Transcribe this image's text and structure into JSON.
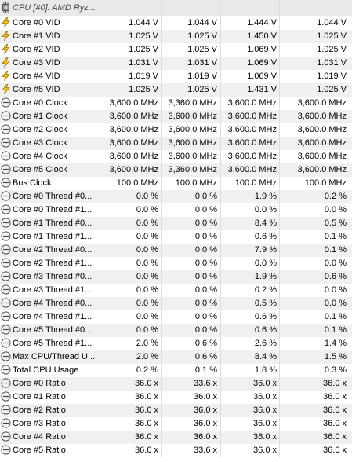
{
  "header": {
    "title": "CPU [#0]: AMD Ryz...",
    "icon": "cpu-chip-icon"
  },
  "icons": {
    "voltage": "lightning-icon",
    "clock": "gauge-icon"
  },
  "rows": [
    {
      "icon": "voltage",
      "label": "Core #0 VID",
      "v": [
        "1.044 V",
        "1.044 V",
        "1.444 V",
        "1.044 V"
      ]
    },
    {
      "icon": "voltage",
      "label": "Core #1 VID",
      "v": [
        "1.025 V",
        "1.025 V",
        "1.450 V",
        "1.025 V"
      ]
    },
    {
      "icon": "voltage",
      "label": "Core #2 VID",
      "v": [
        "1.025 V",
        "1.025 V",
        "1.069 V",
        "1.025 V"
      ]
    },
    {
      "icon": "voltage",
      "label": "Core #3 VID",
      "v": [
        "1.031 V",
        "1.031 V",
        "1.069 V",
        "1.031 V"
      ]
    },
    {
      "icon": "voltage",
      "label": "Core #4 VID",
      "v": [
        "1.019 V",
        "1.019 V",
        "1.069 V",
        "1.019 V"
      ]
    },
    {
      "icon": "voltage",
      "label": "Core #5 VID",
      "v": [
        "1.025 V",
        "1.025 V",
        "1.431 V",
        "1.025 V"
      ]
    },
    {
      "icon": "clock",
      "label": "Core #0 Clock",
      "v": [
        "3,600.0 MHz",
        "3,360.0 MHz",
        "3,600.0 MHz",
        "3,600.0 MHz"
      ]
    },
    {
      "icon": "clock",
      "label": "Core #1 Clock",
      "v": [
        "3,600.0 MHz",
        "3,600.0 MHz",
        "3,600.0 MHz",
        "3,600.0 MHz"
      ]
    },
    {
      "icon": "clock",
      "label": "Core #2 Clock",
      "v": [
        "3,600.0 MHz",
        "3,600.0 MHz",
        "3,600.0 MHz",
        "3,600.0 MHz"
      ]
    },
    {
      "icon": "clock",
      "label": "Core #3 Clock",
      "v": [
        "3,600.0 MHz",
        "3,600.0 MHz",
        "3,600.0 MHz",
        "3,600.0 MHz"
      ]
    },
    {
      "icon": "clock",
      "label": "Core #4 Clock",
      "v": [
        "3,600.0 MHz",
        "3,600.0 MHz",
        "3,600.0 MHz",
        "3,600.0 MHz"
      ]
    },
    {
      "icon": "clock",
      "label": "Core #5 Clock",
      "v": [
        "3,600.0 MHz",
        "3,360.0 MHz",
        "3,600.0 MHz",
        "3,600.0 MHz"
      ]
    },
    {
      "icon": "clock",
      "label": "Bus Clock",
      "v": [
        "100.0 MHz",
        "100.0 MHz",
        "100.0 MHz",
        "100.0 MHz"
      ]
    },
    {
      "icon": "clock",
      "label": "Core #0 Thread #0...",
      "v": [
        "0.0 %",
        "0.0 %",
        "1.9 %",
        "0.2 %"
      ]
    },
    {
      "icon": "clock",
      "label": "Core #0 Thread #1...",
      "v": [
        "0.0 %",
        "0.0 %",
        "0.0 %",
        "0.0 %"
      ]
    },
    {
      "icon": "clock",
      "label": "Core #1 Thread #0...",
      "v": [
        "0.0 %",
        "0.0 %",
        "8.4 %",
        "0.5 %"
      ]
    },
    {
      "icon": "clock",
      "label": "Core #1 Thread #1...",
      "v": [
        "0.0 %",
        "0.0 %",
        "0.6 %",
        "0.1 %"
      ]
    },
    {
      "icon": "clock",
      "label": "Core #2 Thread #0...",
      "v": [
        "0.0 %",
        "0.0 %",
        "7.9 %",
        "0.1 %"
      ]
    },
    {
      "icon": "clock",
      "label": "Core #2 Thread #1...",
      "v": [
        "0.0 %",
        "0.0 %",
        "0.0 %",
        "0.0 %"
      ]
    },
    {
      "icon": "clock",
      "label": "Core #3 Thread #0...",
      "v": [
        "0.0 %",
        "0.0 %",
        "1.9 %",
        "0.6 %"
      ]
    },
    {
      "icon": "clock",
      "label": "Core #3 Thread #1...",
      "v": [
        "0.0 %",
        "0.0 %",
        "0.2 %",
        "0.0 %"
      ]
    },
    {
      "icon": "clock",
      "label": "Core #4 Thread #0...",
      "v": [
        "0.0 %",
        "0.0 %",
        "0.5 %",
        "0.0 %"
      ]
    },
    {
      "icon": "clock",
      "label": "Core #4 Thread #1...",
      "v": [
        "0.0 %",
        "0.0 %",
        "0.6 %",
        "0.1 %"
      ]
    },
    {
      "icon": "clock",
      "label": "Core #5 Thread #0...",
      "v": [
        "0.0 %",
        "0.0 %",
        "0.6 %",
        "0.1 %"
      ]
    },
    {
      "icon": "clock",
      "label": "Core #5 Thread #1...",
      "v": [
        "2.0 %",
        "0.6 %",
        "2.6 %",
        "1.4 %"
      ]
    },
    {
      "icon": "clock",
      "label": "Max CPU/Thread U...",
      "v": [
        "2.0 %",
        "0.6 %",
        "8.4 %",
        "1.5 %"
      ]
    },
    {
      "icon": "clock",
      "label": "Total CPU Usage",
      "v": [
        "0.2 %",
        "0.1 %",
        "1.8 %",
        "0.3 %"
      ]
    },
    {
      "icon": "clock",
      "label": "Core #0 Ratio",
      "v": [
        "36.0 x",
        "33.6 x",
        "36.0 x",
        "36.0 x"
      ]
    },
    {
      "icon": "clock",
      "label": "Core #1 Ratio",
      "v": [
        "36.0 x",
        "36.0 x",
        "36.0 x",
        "36.0 x"
      ]
    },
    {
      "icon": "clock",
      "label": "Core #2 Ratio",
      "v": [
        "36.0 x",
        "36.0 x",
        "36.0 x",
        "36.0 x"
      ]
    },
    {
      "icon": "clock",
      "label": "Core #3 Ratio",
      "v": [
        "36.0 x",
        "36.0 x",
        "36.0 x",
        "36.0 x"
      ]
    },
    {
      "icon": "clock",
      "label": "Core #4 Ratio",
      "v": [
        "36.0 x",
        "36.0 x",
        "36.0 x",
        "36.0 x"
      ]
    },
    {
      "icon": "clock",
      "label": "Core #5 Ratio",
      "v": [
        "36.0 x",
        "33.6 x",
        "36.0 x",
        "36.0 x"
      ]
    }
  ]
}
